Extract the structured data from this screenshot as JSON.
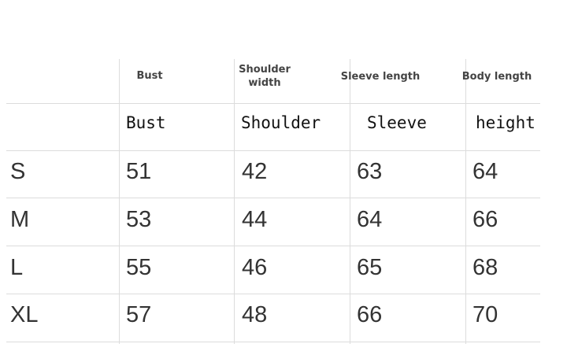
{
  "header_en": [
    "Bust",
    "Shoulder width",
    "Sleeve length",
    "Body length"
  ],
  "header_alt": [
    "Bust",
    "Shoulder",
    "Sleeve",
    "height"
  ],
  "rows": [
    {
      "size": "S",
      "values": [
        "51",
        "42",
        "63",
        "64"
      ]
    },
    {
      "size": "M",
      "values": [
        "53",
        "44",
        "64",
        "66"
      ]
    },
    {
      "size": "L",
      "values": [
        "55",
        "46",
        "65",
        "68"
      ]
    },
    {
      "size": "XL",
      "values": [
        "57",
        "48",
        "66",
        "70"
      ]
    }
  ]
}
